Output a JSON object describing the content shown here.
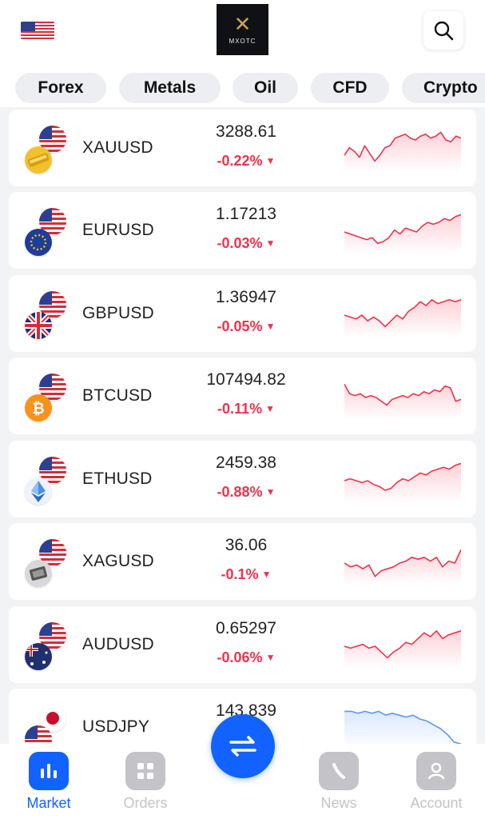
{
  "header": {
    "logo_text": "MXOTC"
  },
  "tabs": [
    "Forex",
    "Metals",
    "Oil",
    "CFD",
    "Crypto"
  ],
  "colors": {
    "down": "#f0324c",
    "accent": "#1162ff",
    "blue_line": "#5c9af0",
    "inactive": "#c4c4c8"
  },
  "markets": [
    {
      "symbol": "XAUUSD",
      "price": "3288.61",
      "change": "-0.22%",
      "base_icon": "gold-icon",
      "trend": "down",
      "spark": [
        0.35,
        0.55,
        0.45,
        0.3,
        0.6,
        0.4,
        0.2,
        0.35,
        0.55,
        0.6,
        0.8,
        0.85,
        0.9,
        0.8,
        0.75,
        0.85,
        0.9,
        0.8,
        0.85,
        0.95,
        0.75,
        0.7,
        0.85,
        0.8
      ]
    },
    {
      "symbol": "EURUSD",
      "price": "1.17213",
      "change": "-0.03%",
      "base_icon": "eu-flag-icon",
      "trend": "down",
      "spark": [
        0.5,
        0.45,
        0.4,
        0.35,
        0.3,
        0.35,
        0.2,
        0.25,
        0.35,
        0.55,
        0.45,
        0.6,
        0.55,
        0.5,
        0.65,
        0.75,
        0.7,
        0.75,
        0.85,
        0.8,
        0.9,
        0.95
      ]
    },
    {
      "symbol": "GBPUSD",
      "price": "1.36947",
      "change": "-0.05%",
      "base_icon": "uk-flag-icon",
      "trend": "down",
      "spark": [
        0.5,
        0.45,
        0.4,
        0.5,
        0.35,
        0.45,
        0.35,
        0.2,
        0.35,
        0.5,
        0.4,
        0.6,
        0.7,
        0.85,
        0.75,
        0.9,
        0.8,
        0.85,
        0.9,
        0.85,
        0.9
      ]
    },
    {
      "symbol": "BTCUSD",
      "price": "107494.82",
      "change": "-0.11%",
      "base_icon": "bitcoin-icon",
      "trend": "down",
      "spark": [
        0.85,
        0.6,
        0.55,
        0.6,
        0.5,
        0.55,
        0.5,
        0.4,
        0.3,
        0.45,
        0.5,
        0.55,
        0.5,
        0.6,
        0.55,
        0.65,
        0.6,
        0.7,
        0.65,
        0.8,
        0.75,
        0.4,
        0.45
      ]
    },
    {
      "symbol": "ETHUSD",
      "price": "2459.38",
      "change": "-0.88%",
      "base_icon": "ethereum-icon",
      "trend": "down",
      "spark": [
        0.5,
        0.55,
        0.5,
        0.45,
        0.5,
        0.4,
        0.35,
        0.25,
        0.3,
        0.45,
        0.55,
        0.5,
        0.6,
        0.7,
        0.65,
        0.75,
        0.8,
        0.85,
        0.8,
        0.9,
        0.95
      ]
    },
    {
      "symbol": "XAGUSD",
      "price": "36.06",
      "change": "-0.1%",
      "base_icon": "silver-icon",
      "trend": "down",
      "spark": [
        0.5,
        0.4,
        0.45,
        0.35,
        0.45,
        0.15,
        0.3,
        0.35,
        0.4,
        0.5,
        0.55,
        0.65,
        0.6,
        0.65,
        0.55,
        0.65,
        0.4,
        0.55,
        0.5,
        0.85
      ]
    },
    {
      "symbol": "AUDUSD",
      "price": "0.65297",
      "change": "-0.06%",
      "base_icon": "au-flag-icon",
      "trend": "down",
      "spark": [
        0.5,
        0.45,
        0.5,
        0.55,
        0.45,
        0.5,
        0.35,
        0.2,
        0.35,
        0.45,
        0.6,
        0.55,
        0.7,
        0.85,
        0.75,
        0.9,
        0.7,
        0.8,
        0.85,
        0.9
      ]
    },
    {
      "symbol": "USDJPY",
      "price": "143.839",
      "change": "",
      "base_icon": "us-flag-icon",
      "top_icon": "japan-flag-icon",
      "trend": "blue",
      "spark": [
        0.95,
        0.95,
        0.9,
        0.95,
        0.9,
        0.95,
        0.85,
        0.9,
        0.85,
        0.8,
        0.85,
        0.75,
        0.7,
        0.6,
        0.5,
        0.35,
        0.15,
        0.1
      ]
    }
  ],
  "nav": {
    "market": "Market",
    "orders": "Orders",
    "news": "News",
    "account": "Account"
  }
}
